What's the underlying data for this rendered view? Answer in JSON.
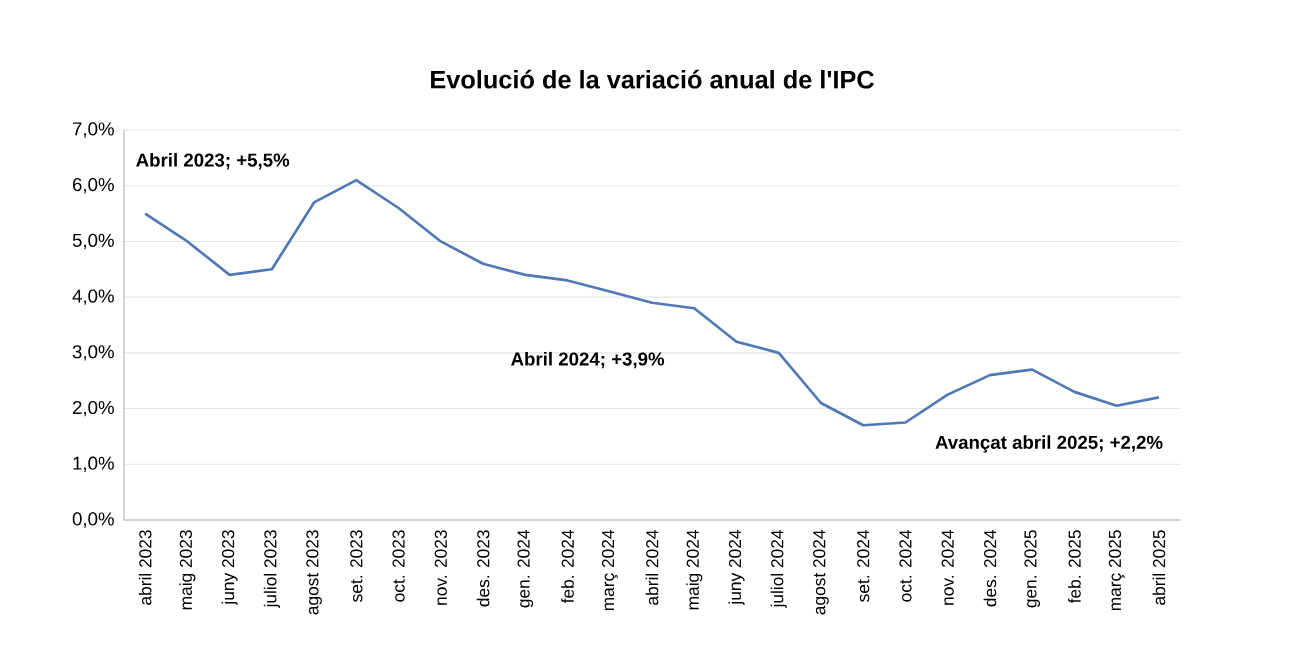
{
  "chart_data": {
    "type": "line",
    "title": "Evolució de la variació anual de l'IPC",
    "categories": [
      "abril 2023",
      "maig 2023",
      "juny 2023",
      "juliol 2023",
      "agost 2023",
      "set. 2023",
      "oct. 2023",
      "nov. 2023",
      "des. 2023",
      "gen. 2024",
      "feb. 2024",
      "març 2024",
      "abril 2024",
      "maig 2024",
      "juny 2024",
      "juliol 2024",
      "agost 2024",
      "set. 2024",
      "oct. 2024",
      "nov. 2024",
      "des. 2024",
      "gen. 2025",
      "feb. 2025",
      "març 2025",
      "abril 2025"
    ],
    "series": [
      {
        "color": "#4f78b5",
        "values": [
          5.5,
          5.0,
          4.4,
          4.5,
          5.7,
          6.1,
          5.6,
          5.0,
          4.6,
          4.4,
          4.3,
          4.1,
          3.9,
          3.8,
          3.2,
          3.0,
          2.1,
          1.7,
          1.75,
          2.25,
          2.6,
          2.7,
          2.3,
          2.05,
          2.2
        ]
      }
    ],
    "ylim": [
      0,
      7
    ],
    "yticks": [
      {
        "value": 0,
        "label": "0,0%"
      },
      {
        "value": 1,
        "label": "1,0%"
      },
      {
        "value": 2,
        "label": "2,0%"
      },
      {
        "value": 3,
        "label": "3,0%"
      },
      {
        "value": 4,
        "label": "4,0%"
      },
      {
        "value": 5,
        "label": "5,0%"
      },
      {
        "value": 6,
        "label": "6,0%"
      },
      {
        "value": 7,
        "label": "7,0%"
      }
    ],
    "grid": "y",
    "marker": "none",
    "line_style": "solid",
    "annotations": [
      "Abril 2023; +5,5%",
      "Abril 2024;  +3,9%",
      "Avançat abril 2025; +2,2%"
    ]
  }
}
